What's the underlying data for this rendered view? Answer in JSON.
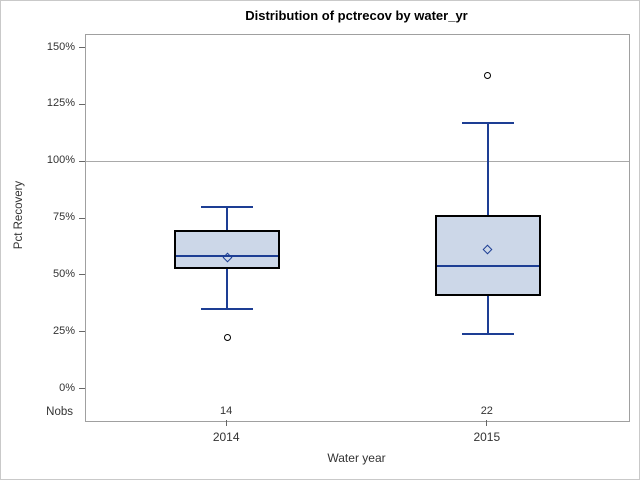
{
  "chart_data": {
    "type": "box",
    "title": "Distribution of pctrecov by water_yr",
    "xlabel": "Water year",
    "ylabel": "Pct Recovery",
    "categories": [
      "2014",
      "2015"
    ],
    "nobs_label": "Nobs",
    "nobs": [
      "14",
      "22"
    ],
    "ylim": [
      0,
      150
    ],
    "yticks": [
      {
        "value": 0,
        "label": "0%"
      },
      {
        "value": 25,
        "label": "25%"
      },
      {
        "value": 50,
        "label": "50%"
      },
      {
        "value": 75,
        "label": "75%"
      },
      {
        "value": 100,
        "label": "100%"
      },
      {
        "value": 125,
        "label": "125%"
      },
      {
        "value": 150,
        "label": "150%"
      }
    ],
    "reference_line_y": 100,
    "grid": "off",
    "legend": "none",
    "series": [
      {
        "category": "2014",
        "n": 14,
        "lower_whisker": 35,
        "q1": 53,
        "median": 58.5,
        "mean": 58,
        "q3": 70,
        "upper_whisker": 80,
        "outliers": [
          22.5
        ]
      },
      {
        "category": "2015",
        "n": 22,
        "lower_whisker": 24,
        "q1": 41,
        "median": 54,
        "mean": 61.5,
        "q3": 76.5,
        "upper_whisker": 117,
        "outliers": [
          138
        ]
      }
    ],
    "colors": {
      "box_fill": "#ccd7e8",
      "box_border": "#000000",
      "whisker": "#1d3e94",
      "median": "#1d3e94",
      "mean_marker": "#1d3e94",
      "outlier": "#000000",
      "reference_line": "#a9a9a9",
      "frame": "#a0a0a0",
      "tick": "#666666",
      "text": "#333333",
      "background": "#ffffff"
    }
  }
}
